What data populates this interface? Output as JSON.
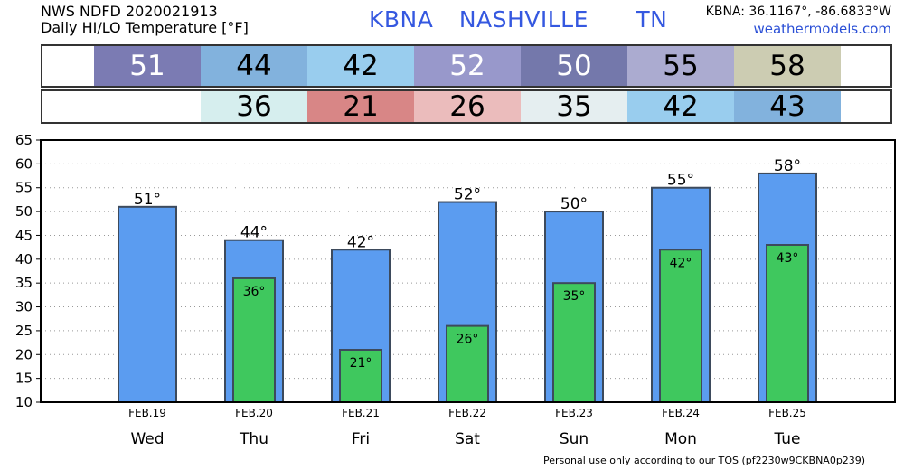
{
  "header": {
    "line1": "NWS NDFD 2020021913",
    "line2": "Daily HI/LO Temperature [°F]",
    "station_id": "KBNA",
    "city": "NASHVILLE",
    "state": "TN",
    "coords": "KBNA: 36.1167°, -86.6833°W",
    "site": "weathermodels.com"
  },
  "hi_strip": [
    {
      "label": "51",
      "color": "#7b7bb3",
      "text_color": "#ffffff"
    },
    {
      "label": "44",
      "color": "#82b2dd",
      "text_color": "#000000"
    },
    {
      "label": "42",
      "color": "#99cdee",
      "text_color": "#000000"
    },
    {
      "label": "52",
      "color": "#9898cb",
      "text_color": "#ffffff"
    },
    {
      "label": "50",
      "color": "#7478ab",
      "text_color": "#ffffff"
    },
    {
      "label": "55",
      "color": "#ababd0",
      "text_color": "#000000"
    },
    {
      "label": "58",
      "color": "#ccccb2",
      "text_color": "#000000"
    }
  ],
  "lo_strip": [
    {
      "label": "",
      "color": "#ffffff",
      "text_color": "#000000"
    },
    {
      "label": "36",
      "color": "#d6eeee",
      "text_color": "#000000"
    },
    {
      "label": "21",
      "color": "#d88686",
      "text_color": "#000000"
    },
    {
      "label": "26",
      "color": "#ebbcbc",
      "text_color": "#000000"
    },
    {
      "label": "35",
      "color": "#e5eef0",
      "text_color": "#000000"
    },
    {
      "label": "42",
      "color": "#99cdee",
      "text_color": "#000000"
    },
    {
      "label": "43",
      "color": "#82b2dd",
      "text_color": "#000000"
    }
  ],
  "chart_data": {
    "type": "bar",
    "title": "Daily HI/LO Temperature [°F]",
    "dates": [
      "FEB.19",
      "FEB.20",
      "FEB.21",
      "FEB.22",
      "FEB.23",
      "FEB.24",
      "FEB.25"
    ],
    "categories": [
      "Wed",
      "Thu",
      "Fri",
      "Sat",
      "Sun",
      "Mon",
      "Tue"
    ],
    "series": [
      {
        "name": "HI",
        "color": "#5b9cf0",
        "values": [
          51,
          44,
          42,
          52,
          50,
          55,
          58
        ]
      },
      {
        "name": "LO",
        "color": "#3fc85e",
        "values": [
          null,
          36,
          21,
          26,
          35,
          42,
          43
        ]
      }
    ],
    "ylim": [
      10,
      65
    ],
    "yticks": [
      10,
      15,
      20,
      25,
      30,
      35,
      40,
      45,
      50,
      55,
      60,
      65
    ],
    "grid": true,
    "degree_symbol": "°"
  },
  "footer": "Personal use only according to our TOS (pf2230w9CKBNA0p239)"
}
